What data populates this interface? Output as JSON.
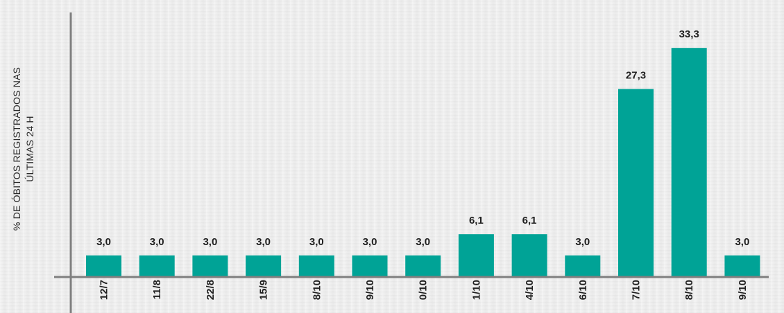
{
  "chart_data": {
    "type": "bar",
    "ylabel": "% DE ÓBITOS REGISTRADOS NAS\nÚLTIMAS 24 H",
    "xlabel": "",
    "categories": [
      "12/7",
      "11/8",
      "22/8",
      "15/9",
      "8/10",
      "9/10",
      "0/10",
      "1/10",
      "4/10",
      "6/10",
      "7/10",
      "8/10",
      "9/10"
    ],
    "values": [
      3.0,
      3.0,
      3.0,
      3.0,
      3.0,
      3.0,
      3.0,
      6.1,
      6.1,
      3.0,
      27.3,
      33.3,
      3.0
    ],
    "value_labels": [
      "3,0",
      "3,0",
      "3,0",
      "3,0",
      "3,0",
      "3,0",
      "3,0",
      "6,1",
      "6,1",
      "3,0",
      "27,3",
      "33,3",
      "3,0"
    ],
    "ylim": [
      0,
      36
    ],
    "grid": false,
    "legend": "none"
  },
  "colors": {
    "bar": "#00a396",
    "axis": "#7f7f7f",
    "text": "#1f1f1f"
  }
}
